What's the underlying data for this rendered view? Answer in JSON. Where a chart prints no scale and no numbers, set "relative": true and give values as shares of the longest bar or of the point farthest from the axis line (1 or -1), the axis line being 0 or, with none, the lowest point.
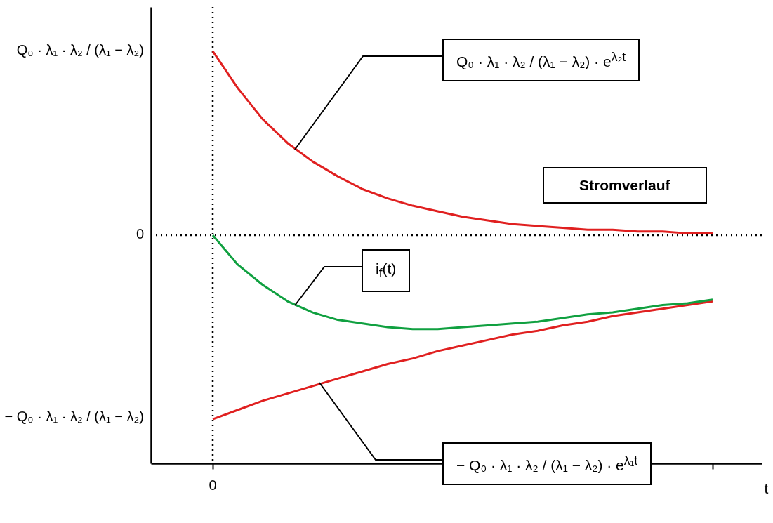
{
  "chart_data": {
    "type": "line",
    "xlabel": "t",
    "categories": [
      null,
      null,
      null,
      null,
      null,
      null,
      null,
      null,
      null,
      null,
      null,
      null,
      null,
      null,
      null,
      null,
      null,
      null,
      null,
      null,
      null
    ],
    "series": [
      {
        "color": "#e02020",
        "values": [
          1,
          0.8,
          0.63,
          0.5,
          0.4,
          0.32,
          0.25,
          0.2,
          0.16,
          0.13,
          0.1,
          0.08,
          0.06,
          0.05,
          0.04,
          0.03,
          0.03,
          0.02,
          0.02,
          0.01,
          0.01
        ]
      },
      {
        "color": "#e02020",
        "values": [
          -1,
          -0.95,
          -0.9,
          -0.86,
          -0.82,
          -0.78,
          -0.74,
          -0.7,
          -0.67,
          -0.63,
          -0.6,
          -0.57,
          -0.54,
          -0.52,
          -0.49,
          -0.47,
          -0.44,
          -0.42,
          -0.4,
          -0.38,
          -0.36
        ]
      },
      {
        "color": "#10a040",
        "values": [
          0,
          -0.16,
          -0.27,
          -0.36,
          -0.42,
          -0.46,
          -0.48,
          -0.5,
          -0.51,
          -0.51,
          -0.5,
          -0.49,
          -0.48,
          -0.47,
          -0.45,
          -0.43,
          -0.42,
          -0.4,
          -0.38,
          -0.37,
          -0.35
        ]
      }
    ],
    "relative": true,
    "ref_lines": [
      {
        "axis": "y",
        "value": 0,
        "line_style": "dotted"
      }
    ],
    "annotations": [
      "Q₀ · λ₁ · λ₂ / (λ₁ − λ₂) · e$^{λ₂t}$",
      "Stromverlauf",
      "i$_{f}$(t)",
      "− Q₀ · λ₁ · λ₂ / (λ₁ − λ₂) · e$^{λ₁t}$",
      "Q₀ · λ₁ · λ₂ / (λ₁ − λ₂)",
      "0",
      "− Q₀ · λ₁ · λ₂ / (λ₁ − λ₂)",
      "0"
    ],
    "grid": false
  }
}
